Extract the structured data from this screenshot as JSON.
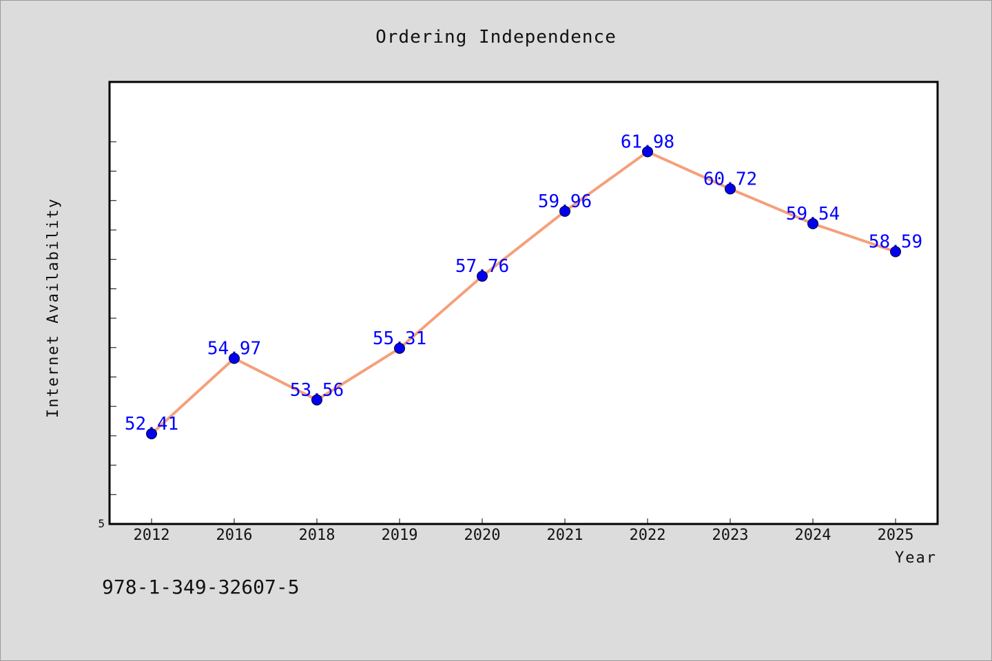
{
  "chart_data": {
    "type": "line",
    "title": "Ordering Independence",
    "xlabel": "Year",
    "ylabel": "Internet Availability",
    "categories": [
      "2012",
      "2016",
      "2018",
      "2019",
      "2020",
      "2021",
      "2022",
      "2023",
      "2024",
      "2025"
    ],
    "series": [
      {
        "values": [
          52.41,
          54.97,
          53.56,
          55.31,
          57.76,
          59.96,
          61.98,
          60.72,
          59.54,
          58.59
        ],
        "labels": [
          "52.41",
          "54.97",
          "53.56",
          "55.31",
          "57.76",
          "59.96",
          "61.98",
          "60.72",
          "59.54",
          "58.59"
        ],
        "line_color": "#f4a07a",
        "marker_color": "#0000ee"
      }
    ],
    "y_tick_label": "5",
    "ylim": [
      49.35,
      64.35
    ],
    "grid": false,
    "legend": "none"
  },
  "footer_text": "978-1-349-32607-5",
  "colors": {
    "background": "#dcdcdc",
    "plot_background": "#ffffff",
    "data_label": "#0000ff"
  }
}
